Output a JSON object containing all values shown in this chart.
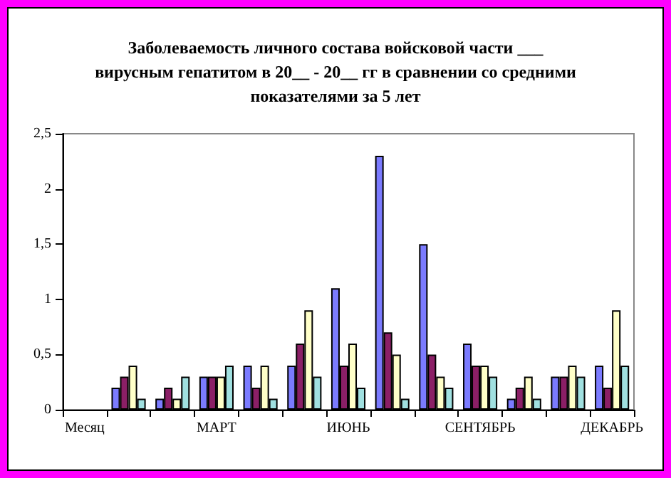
{
  "chart_data": {
    "type": "bar",
    "title": "Заболеваемость личного состава войсковой части ___\nвирусным гепатитом в 20__ - 20__ гг в сравнении со средними\nпоказателями за 5 лет",
    "categories": [
      "Месяц",
      null,
      null,
      "МАРТ",
      null,
      null,
      "ИЮНЬ",
      null,
      null,
      "СЕНТЯБРЬ",
      null,
      null,
      "ДЕКАБРЬ"
    ],
    "series": [
      {
        "color": "#7b7bff",
        "values": [
          null,
          0.2,
          0.1,
          0.3,
          0.4,
          0.4,
          1.1,
          2.3,
          1.5,
          0.6,
          0.1,
          0.3,
          0.4
        ]
      },
      {
        "color": "#8b1f66",
        "values": [
          null,
          0.3,
          0.2,
          0.3,
          0.2,
          0.6,
          0.4,
          0.7,
          0.5,
          0.4,
          0.2,
          0.3,
          0.2
        ]
      },
      {
        "color": "#ffffc8",
        "values": [
          null,
          0.4,
          0.1,
          0.3,
          0.4,
          0.9,
          0.6,
          0.5,
          0.3,
          0.4,
          0.3,
          0.4,
          0.9
        ]
      },
      {
        "color": "#a0e0e0",
        "values": [
          null,
          0.1,
          0.3,
          0.4,
          0.1,
          0.3,
          0.2,
          0.1,
          0.2,
          0.3,
          0.1,
          0.3,
          0.4
        ]
      }
    ],
    "ylim": [
      0,
      2.5
    ],
    "yticks": [
      0,
      {
        "value": 0.5,
        "label": "0,5"
      },
      1,
      {
        "value": 1.5,
        "label": "1,5"
      },
      2,
      {
        "value": 2.5,
        "label": "2,5"
      }
    ],
    "grid": false
  }
}
